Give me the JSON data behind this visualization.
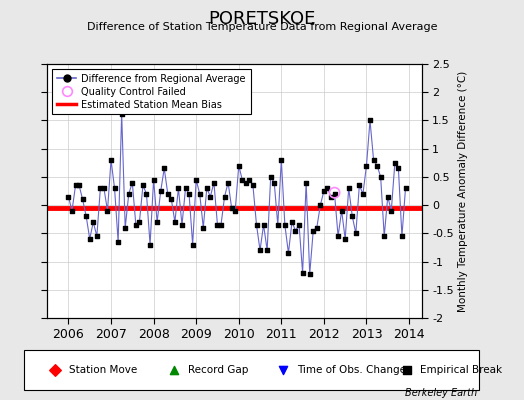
{
  "title": "PORETSKOE",
  "subtitle": "Difference of Station Temperature Data from Regional Average",
  "ylabel": "Monthly Temperature Anomaly Difference (°C)",
  "xlim": [
    2005.5,
    2014.3
  ],
  "ylim": [
    -2.0,
    2.5
  ],
  "yticks": [
    -2.0,
    -1.5,
    -1.0,
    -0.5,
    0.0,
    0.5,
    1.0,
    1.5,
    2.0,
    2.5
  ],
  "xticks": [
    2006,
    2007,
    2008,
    2009,
    2010,
    2011,
    2012,
    2013,
    2014
  ],
  "bias": -0.05,
  "background_color": "#e8e8e8",
  "plot_bg_color": "#ffffff",
  "line_color": "#6666cc",
  "marker_color": "#000000",
  "bias_color": "#ff0000",
  "qc_circle_color": "#ff88ff",
  "berkeley_earth_text": "Berkeley Earth",
  "times": [
    2006.0,
    2006.083,
    2006.167,
    2006.25,
    2006.333,
    2006.417,
    2006.5,
    2006.583,
    2006.667,
    2006.75,
    2006.833,
    2006.917,
    2007.0,
    2007.083,
    2007.167,
    2007.25,
    2007.333,
    2007.417,
    2007.5,
    2007.583,
    2007.667,
    2007.75,
    2007.833,
    2007.917,
    2008.0,
    2008.083,
    2008.167,
    2008.25,
    2008.333,
    2008.417,
    2008.5,
    2008.583,
    2008.667,
    2008.75,
    2008.833,
    2008.917,
    2009.0,
    2009.083,
    2009.167,
    2009.25,
    2009.333,
    2009.417,
    2009.5,
    2009.583,
    2009.667,
    2009.75,
    2009.833,
    2009.917,
    2010.0,
    2010.083,
    2010.167,
    2010.25,
    2010.333,
    2010.417,
    2010.5,
    2010.583,
    2010.667,
    2010.75,
    2010.833,
    2010.917,
    2011.0,
    2011.083,
    2011.167,
    2011.25,
    2011.333,
    2011.417,
    2011.5,
    2011.583,
    2011.667,
    2011.75,
    2011.833,
    2011.917,
    2012.0,
    2012.083,
    2012.167,
    2012.25,
    2012.333,
    2012.417,
    2012.5,
    2012.583,
    2012.667,
    2012.75,
    2012.833,
    2012.917,
    2013.0,
    2013.083,
    2013.167,
    2013.25,
    2013.333,
    2013.417,
    2013.5,
    2013.583,
    2013.667,
    2013.75,
    2013.833,
    2013.917
  ],
  "values": [
    0.15,
    -0.1,
    0.35,
    0.35,
    0.1,
    -0.2,
    -0.6,
    -0.3,
    -0.55,
    0.3,
    0.3,
    -0.1,
    0.8,
    0.3,
    -0.65,
    1.62,
    -0.4,
    0.2,
    0.4,
    -0.35,
    -0.3,
    0.35,
    0.2,
    -0.7,
    0.45,
    -0.3,
    0.25,
    0.65,
    0.2,
    0.1,
    -0.3,
    0.3,
    -0.35,
    0.3,
    0.2,
    -0.7,
    0.45,
    0.2,
    -0.4,
    0.3,
    0.15,
    0.4,
    -0.35,
    -0.35,
    0.15,
    0.4,
    -0.05,
    -0.1,
    0.7,
    0.45,
    0.4,
    0.45,
    0.35,
    -0.35,
    -0.8,
    -0.35,
    -0.8,
    0.5,
    0.4,
    -0.35,
    0.8,
    -0.35,
    -0.85,
    -0.3,
    -0.45,
    -0.35,
    -1.2,
    0.4,
    -1.22,
    -0.45,
    -0.4,
    0.0,
    0.25,
    0.3,
    0.15,
    0.2,
    -0.55,
    -0.1,
    -0.6,
    0.3,
    -0.2,
    -0.5,
    0.35,
    0.2,
    0.7,
    1.5,
    0.8,
    0.7,
    0.5,
    -0.55,
    0.15,
    -0.1,
    0.75,
    0.65,
    -0.55,
    0.3
  ],
  "qc_times": [
    2012.25
  ],
  "qc_values": [
    0.22
  ]
}
